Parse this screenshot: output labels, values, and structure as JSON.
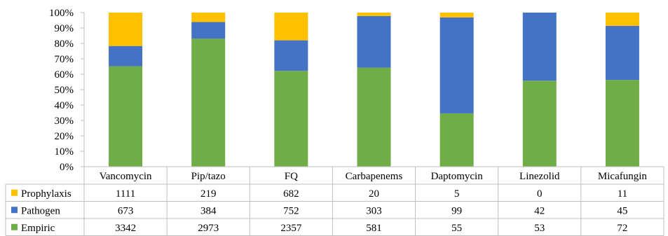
{
  "chart_data": {
    "type": "bar",
    "stacked": "percent",
    "categories": [
      "Vancomycin",
      "Pip/tazo",
      "FQ",
      "Carbapenems",
      "Daptomycin",
      "Linezolid",
      "Micafungin"
    ],
    "series": [
      {
        "name": "Prophylaxis",
        "color": "#FFC000",
        "values": [
          1111,
          219,
          682,
          20,
          5,
          0,
          11
        ]
      },
      {
        "name": "Pathogen",
        "color": "#4472C4",
        "values": [
          673,
          384,
          752,
          303,
          99,
          42,
          45
        ]
      },
      {
        "name": "Empiric",
        "color": "#70AD47",
        "values": [
          3342,
          2973,
          2357,
          581,
          55,
          53,
          72
        ]
      }
    ],
    "ytick_labels": [
      "0%",
      "10%",
      "20%",
      "30%",
      "40%",
      "50%",
      "60%",
      "70%",
      "80%",
      "90%",
      "100%"
    ],
    "ylim": [
      0,
      100
    ],
    "grid": false,
    "legend": "data-table-left"
  }
}
